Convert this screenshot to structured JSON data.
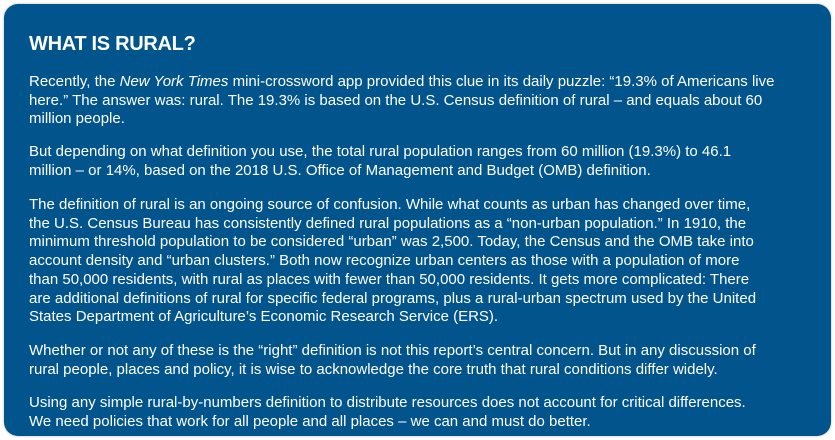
{
  "title": "WHAT IS RURAL?",
  "colors": {
    "background": "#02558c",
    "text": "#ffffff"
  },
  "paragraphs": [
    {
      "first_line": {
        "before": "Recently, the ",
        "italic": "New York Times",
        "after": " mini-crossword app provided this clue in its daily puzzle: “19.3% of Americans live"
      },
      "lines": [
        "here.” The answer was: rural. The 19.3% is based on the U.S. Census definition of rural – and equals about 60",
        "million people."
      ]
    },
    {
      "lines": [
        "But depending on what definition you use, the total rural population ranges from 60 million (19.3%) to 46.1",
        "million – or 14%, based on the 2018 U.S. Office of Management and Budget (OMB) definition."
      ]
    },
    {
      "lines": [
        "The definition of rural is an ongoing source of confusion. While what counts as urban has changed over time,",
        "the U.S. Census Bureau has consistently defined rural populations as a “non-urban population.” In 1910, the",
        "minimum threshold population to be considered “urban” was 2,500. Today, the Census and the OMB take into",
        "account density and “urban clusters.” Both now recognize urban centers as those with a population of more",
        "than 50,000 residents, with rural as places with fewer than 50,000 residents. It gets more complicated: There",
        "are additional definitions of rural for specific federal programs, plus a rural-urban spectrum used by the United",
        "States Department of Agriculture’s Economic Research Service (ERS)."
      ]
    },
    {
      "lines": [
        "Whether or not any of these is the “right” definition is not this report’s central concern. But in any discussion of",
        "rural people, places and policy, it is wise to acknowledge the core truth that rural conditions differ widely."
      ]
    },
    {
      "lines": [
        "Using any simple rural-by-numbers definition to distribute resources does not account for critical differences.",
        "We need policies that work for all people and all places – we can and must do better."
      ]
    }
  ]
}
